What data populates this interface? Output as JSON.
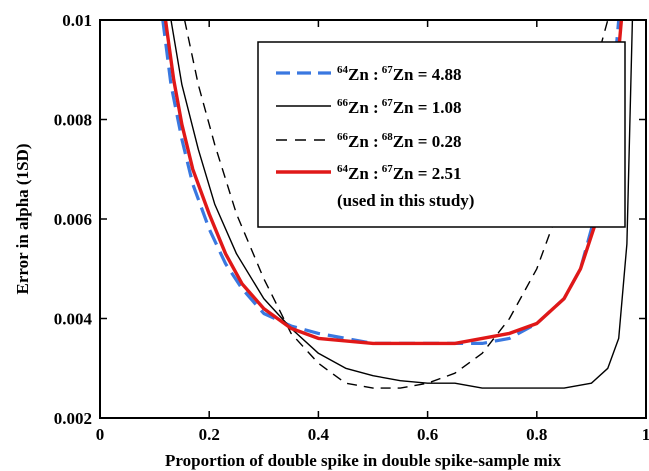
{
  "chart_data": {
    "type": "line",
    "title": "",
    "xlabel": "Proportion of double spike in double spike-sample mix",
    "ylabel": "Error in alpha (1SD)",
    "xlim": [
      0,
      1
    ],
    "ylim": [
      0.002,
      0.01
    ],
    "xticks": [
      "0",
      "0.2",
      "0.4",
      "0.6",
      "0.8",
      "1"
    ],
    "yticks": [
      "0.002",
      "0.004",
      "0.006",
      "0.008",
      "0.01"
    ],
    "grid": false,
    "legend_position": "top-right",
    "series": [
      {
        "name": "64Zn : 67Zn = 4.88",
        "legend": {
          "iso_a": "64",
          "el_a": "Zn :",
          "iso_b": "67",
          "el_b": "Zn = 4.88"
        },
        "color": "#3a78e0",
        "style": "dashed",
        "x": [
          0.115,
          0.13,
          0.15,
          0.17,
          0.2,
          0.23,
          0.26,
          0.3,
          0.35,
          0.4,
          0.45,
          0.5,
          0.55,
          0.6,
          0.65,
          0.7,
          0.75,
          0.8,
          0.85,
          0.88,
          0.9,
          0.93,
          0.95
        ],
        "y": [
          0.01,
          0.0087,
          0.0076,
          0.0067,
          0.0058,
          0.0051,
          0.0046,
          0.0041,
          0.00385,
          0.0037,
          0.0036,
          0.0035,
          0.0035,
          0.0035,
          0.0035,
          0.0035,
          0.0036,
          0.0039,
          0.0044,
          0.005,
          0.0058,
          0.0075,
          0.01
        ]
      },
      {
        "name": "66Zn : 67Zn = 1.08",
        "legend": {
          "iso_a": "66",
          "el_a": "Zn :",
          "iso_b": "67",
          "el_b": "Zn = 1.08"
        },
        "color": "#000000",
        "style": "solid",
        "x": [
          0.13,
          0.15,
          0.18,
          0.21,
          0.25,
          0.3,
          0.35,
          0.4,
          0.45,
          0.5,
          0.55,
          0.6,
          0.65,
          0.7,
          0.75,
          0.8,
          0.85,
          0.9,
          0.93,
          0.95,
          0.965,
          0.975
        ],
        "y": [
          0.01,
          0.0087,
          0.0074,
          0.0063,
          0.0053,
          0.0044,
          0.0038,
          0.0033,
          0.003,
          0.00285,
          0.00275,
          0.0027,
          0.0027,
          0.0026,
          0.0026,
          0.0026,
          0.0026,
          0.0027,
          0.003,
          0.0036,
          0.0055,
          0.01
        ]
      },
      {
        "name": "66Zn : 68Zn = 0.28",
        "legend": {
          "iso_a": "66",
          "el_a": "Zn :",
          "iso_b": "68",
          "el_b": "Zn = 0.28"
        },
        "color": "#000000",
        "style": "dashed",
        "x": [
          0.155,
          0.18,
          0.21,
          0.25,
          0.3,
          0.35,
          0.4,
          0.45,
          0.5,
          0.55,
          0.6,
          0.65,
          0.7,
          0.75,
          0.8,
          0.85,
          0.88,
          0.91,
          0.93
        ],
        "y": [
          0.01,
          0.0087,
          0.0075,
          0.0061,
          0.0048,
          0.0037,
          0.0031,
          0.0027,
          0.0026,
          0.0026,
          0.0027,
          0.0029,
          0.0033,
          0.004,
          0.005,
          0.0065,
          0.0077,
          0.0092,
          0.01
        ]
      },
      {
        "name": "64Zn : 67Zn = 2.51",
        "legend": {
          "iso_a": "64",
          "el_a": "Zn :",
          "iso_b": "67",
          "el_b": "Zn = 2.51"
        },
        "note": "(used in this study)",
        "color": "#e01818",
        "style": "solid",
        "x": [
          0.12,
          0.135,
          0.15,
          0.17,
          0.2,
          0.23,
          0.26,
          0.3,
          0.35,
          0.4,
          0.45,
          0.5,
          0.55,
          0.6,
          0.65,
          0.7,
          0.75,
          0.8,
          0.85,
          0.88,
          0.91,
          0.935,
          0.955
        ],
        "y": [
          0.01,
          0.0088,
          0.0079,
          0.007,
          0.0061,
          0.0053,
          0.0047,
          0.0042,
          0.0038,
          0.0036,
          0.00355,
          0.0035,
          0.0035,
          0.0035,
          0.0035,
          0.0036,
          0.0037,
          0.0039,
          0.0044,
          0.005,
          0.006,
          0.0075,
          0.01
        ]
      }
    ]
  }
}
